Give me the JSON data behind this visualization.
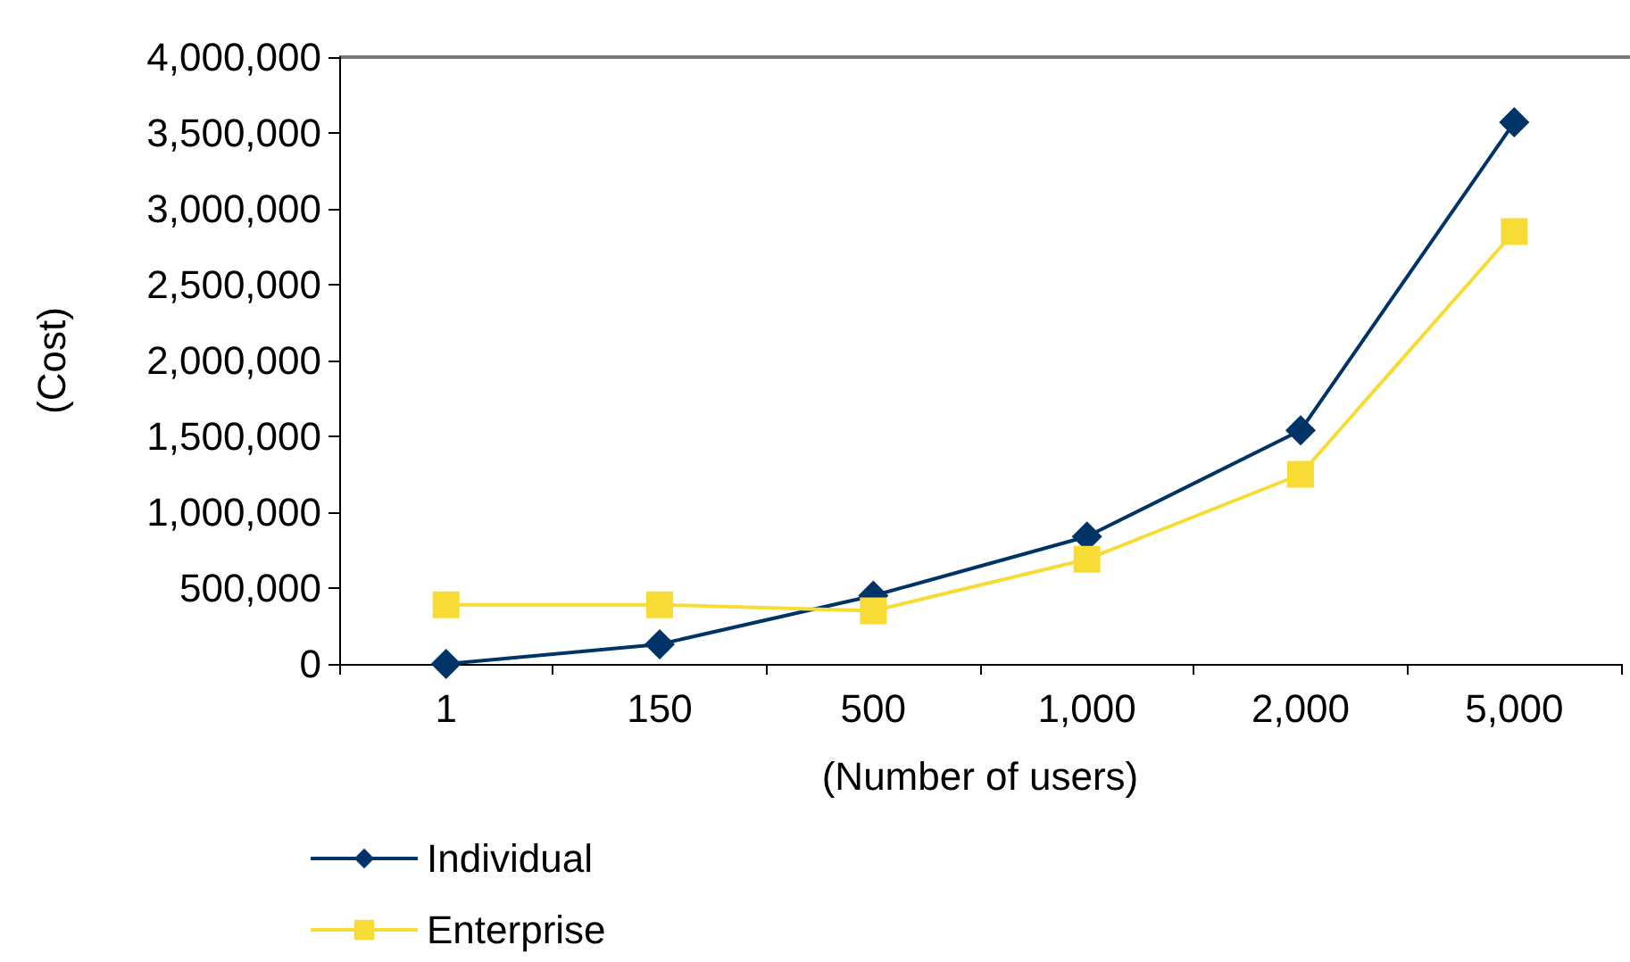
{
  "chart_data": {
    "type": "line",
    "xlabel": "(Number of users)",
    "ylabel": "(Cost)",
    "categories": [
      "1",
      "150",
      "500",
      "1,000",
      "2,000",
      "5,000"
    ],
    "series": [
      {
        "name": "Individual",
        "color": "#003366",
        "marker": "diamond",
        "values": [
          0,
          130000,
          450000,
          840000,
          1540000,
          3570000
        ]
      },
      {
        "name": "Enterprise",
        "color": "#f7dc35",
        "marker": "square",
        "values": [
          390000,
          390000,
          350000,
          690000,
          1250000,
          2850000
        ]
      }
    ],
    "ylim": [
      0,
      4000000
    ],
    "yticks": [
      0,
      {
        "value": 500000,
        "label": "500,000"
      },
      {
        "value": 1000000,
        "label": "1,000,000"
      },
      {
        "value": 1500000,
        "label": "1,500,000"
      },
      {
        "value": 2000000,
        "label": "2,000,000"
      },
      {
        "value": 2500000,
        "label": "2,500,000"
      },
      {
        "value": 3000000,
        "label": "3,000,000"
      },
      {
        "value": 3500000,
        "label": "3,500,000"
      },
      {
        "value": 4000000,
        "label": "4,000,000"
      }
    ],
    "grid": false,
    "legend": "bottom left",
    "line_style": "solid"
  }
}
